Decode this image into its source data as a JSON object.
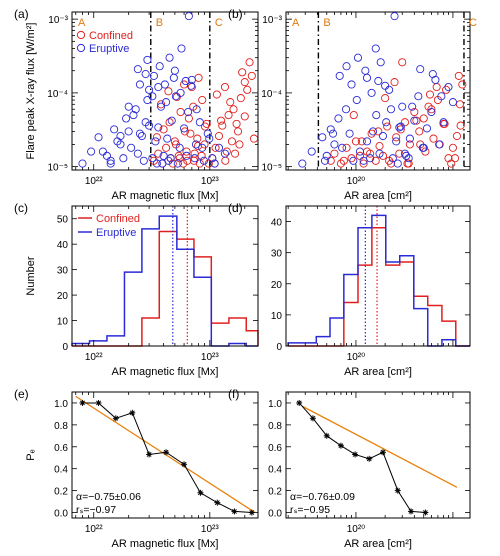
{
  "panel_labels": [
    "(a)",
    "(b)",
    "(c)",
    "(d)",
    "(e)",
    "(f)"
  ],
  "colors": {
    "confined": "#e0201e",
    "eruptive": "#2a2bd6",
    "fit": "#e8820c",
    "regions": "#e07a10",
    "prob": "#000000"
  },
  "chart_data": [
    {
      "id": "a",
      "type": "scatter",
      "xscale": "log",
      "yscale": "log",
      "xlim": [
        6.5e+21,
        2.6e+23
      ],
      "ylim": [
        9e-06,
        0.00125
      ],
      "xlabel": "AR magnetic flux [Mx]",
      "ylabel": "Flare peak X-ray flux [W/m²]",
      "xticks": [
        {
          "v": 1e+22,
          "label": "10²²"
        },
        {
          "v": 1e+23,
          "label": "10²³"
        }
      ],
      "yticks": [
        {
          "v": 1e-05,
          "label": "10⁻⁵"
        },
        {
          "v": 0.0001,
          "label": "10⁻⁴"
        },
        {
          "v": 0.001,
          "label": "10⁻³"
        }
      ],
      "region_labels": [
        "A",
        "B",
        "C"
      ],
      "vlines": [
        3.1e+22,
        1e+23
      ],
      "legend": {
        "position": "top-left",
        "entries": [
          "Confined",
          "Eruptive"
        ]
      },
      "series": [
        {
          "name": "Confined",
          "x": [
            3.3e+22,
            3.6e+22,
            3.9e+22,
            4.2e+22,
            4.6e+22,
            5e+22,
            5.4e+22,
            5.9e+22,
            6.3e+22,
            6.8e+22,
            7.3e+22,
            7.9e+22,
            8.5e+22,
            9.1e+22,
            9.8e+22,
            3.5e+22,
            4e+22,
            4.5e+22,
            5.1e+22,
            5.6e+22,
            6.1e+22,
            6.6e+22,
            7.2e+22,
            7.8e+22,
            8.6e+22,
            9.4e+22,
            1.05e+23,
            1.12e+23,
            1.2e+23,
            1.28e+23,
            1.36e+23,
            1.45e+23,
            1.55e+23,
            1.65e+23,
            1.75e+23,
            1.85e+23,
            2e+23,
            2.2e+23,
            1.1e+23,
            1.25e+23,
            1.4e+23,
            1.6e+23,
            1.8e+23,
            2.1e+23,
            4.8e+22,
            5.5e+22,
            6.4e+22,
            7.4e+22,
            8.2e+22,
            9e+22,
            1.15e+23,
            1.35e+23,
            1.7e+23,
            2.3e+23,
            3.8e+22,
            4.4e+22,
            5.2e+22,
            6e+22,
            7e+22,
            8e+22,
            2.4e+23,
            2e+23,
            1.5e+23,
            1.9e+23
          ],
          "y": [
            1.2e-05,
            1.5e-05,
            1.1e-05,
            1.8e-05,
            1.3e-05,
            2.2e-05,
            1.4e-05,
            1.1e-05,
            1.6e-05,
            2.8e-05,
            1.2e-05,
            1.9e-05,
            1.4e-05,
            3.5e-05,
            1.1e-05,
            2.5e-05,
            3.2e-05,
            4e-05,
            2e-05,
            5.5e-05,
            3e-05,
            4.5e-05,
            6.5e-05,
            2.4e-05,
            8e-05,
            3.8e-05,
            1.3e-05,
            1.8e-05,
            2.6e-05,
            3.6e-05,
            1.2e-05,
            5e-05,
            2.2e-05,
            1.5e-05,
            3e-05,
            8.5e-05,
            0.00014,
            0.00026,
            1.1e-05,
            4.2e-05,
            1.6e-05,
            6e-05,
            2e-05,
            0.00011,
            1.1e-05,
            1.3e-05,
            1.2e-05,
            1.5e-05,
            1.1e-05,
            2e-05,
            9.5e-05,
            0.00012,
            3.8e-05,
            0.00017,
            7e-05,
            0.000105,
            8.8e-05,
            0.00013,
            0.00012,
            0.00016,
            2.4e-05,
            4.8e-05,
            7.5e-05,
            0.00019
          ]
        },
        {
          "name": "Eruptive",
          "x": [
            8e+21,
            9.5e+21,
            1.1e+22,
            1.3e+22,
            1.5e+22,
            1.7e+22,
            1.9e+22,
            2.1e+22,
            2.3e+22,
            2.5e+22,
            2.7e+22,
            2.9e+22,
            1.2e+22,
            1.4e+22,
            1.6e+22,
            1.8e+22,
            2e+22,
            2.2e+22,
            2.4e+22,
            2.6e+22,
            2.8e+22,
            3e+22,
            3.2e+22,
            3.4e+22,
            3.6e+22,
            3.8e+22,
            4e+22,
            4.3e+22,
            4.7e+22,
            5.1e+22,
            5.5e+22,
            6e+22,
            6.5e+22,
            7e+22,
            7.6e+22,
            8.2e+22,
            8.9e+22,
            9.6e+22,
            3.3e+22,
            3.7e+22,
            4.1e+22,
            4.5e+22,
            5e+22,
            5.6e+22,
            6.2e+22,
            6.9e+22,
            7.7e+22,
            1.1e+23,
            1.35e+23,
            2e+22,
            2.4e+22,
            2.8e+22,
            3.2e+22,
            3.6e+22,
            4.2e+22,
            4.9e+22,
            5.7e+22,
            6.6e+22,
            1.05e+23,
            1.2e+23,
            1.4e+22,
            1.7e+22,
            3e+22,
            3.5e+22,
            4.4e+22,
            5.3e+22,
            6.3e+22,
            7.4e+22,
            8.6e+22,
            9.9e+22,
            2.5e+22,
            2.9e+22,
            3.9e+22,
            4.6e+22
          ],
          "y": [
            1.1e-05,
            1.6e-05,
            2.5e-05,
            1.4e-05,
            3.2e-05,
            2e-05,
            4.5e-05,
            1.8e-05,
            6e-05,
            2.8e-05,
            1.2e-05,
            8e-05,
            1.6e-05,
            1.2e-05,
            2.2e-05,
            1.3e-05,
            3e-05,
            5e-05,
            1.5e-05,
            2.6e-05,
            4e-05,
            0.00011,
            1.3e-05,
            2.2e-05,
            3.4e-05,
            6.5e-05,
            1.4e-05,
            2.4e-05,
            4.2e-05,
            9e-05,
            1.8e-05,
            3.3e-05,
            5.5e-05,
            0.00015,
            2e-05,
            4e-05,
            1.2e-05,
            2.8e-05,
            0.00017,
            0.00023,
            0.00013,
            0.0003,
            0.0002,
            0.0001,
            0.000145,
            0.000125,
            6e-05,
            1.1e-05,
            1.5e-05,
            6.5e-05,
            0.00021,
            0.00018,
            9e-05,
            0.00012,
            7.5e-05,
            0.00016,
            0.0004,
            0.0011,
            1.3e-05,
            1.8e-05,
            1.1e-05,
            2.6e-05,
            3.6e-05,
            1.1e-05,
            1.2e-05,
            1.1e-05,
            1.4e-05,
            1.3e-05,
            1.8e-05,
            2.4e-05,
            0.00013,
            0.00028,
            1.1e-05,
            1.3e-05
          ]
        }
      ]
    },
    {
      "id": "b",
      "type": "scatter",
      "xscale": "log",
      "yscale": "log",
      "xlim": [
        1.9e+19,
        1.5e+21
      ],
      "ylim": [
        9e-06,
        0.00125
      ],
      "xlabel": "AR area [cm²]",
      "xticks": [
        {
          "v": 1e+20,
          "label": "10²⁰"
        }
      ],
      "yticks": [
        {
          "v": 1e-05,
          "label": "10⁻⁵"
        },
        {
          "v": 0.0001,
          "label": "10⁻⁴"
        },
        {
          "v": 0.001,
          "label": "10⁻³"
        }
      ],
      "region_labels": [
        "A",
        "B",
        "C"
      ],
      "vlines": [
        4.1e+19,
        1.3e+21
      ],
      "series": [
        {
          "name": "Confined",
          "x": [
            5.5e+19,
            6e+19,
            7e+19,
            8e+19,
            9e+19,
            1e+20,
            1.1e+20,
            1.2e+20,
            1.3e+20,
            1.45e+20,
            1.6e+20,
            1.75e+20,
            1.9e+20,
            2.1e+20,
            2.3e+20,
            2.6e+20,
            2.9e+20,
            3.2e+20,
            3.6e+20,
            4e+20,
            4.5e+20,
            5e+20,
            5.6e+20,
            6.3e+20,
            7e+20,
            8e+20,
            9e+20,
            1e+21,
            1.1e+21,
            1.2e+21,
            7.5e+19,
            9.5e+19,
            1.15e+20,
            1.4e+20,
            1.7e+20,
            2e+20,
            2.5e+20,
            3e+20,
            3.5e+20,
            4.2e+20,
            5.2e+20,
            6e+20,
            7.2e+20,
            8.5e+20,
            9.6e+20,
            1.05e+21,
            2.2e+20,
            2.8e+20,
            3.4e+20,
            4.6e+20,
            5.8e+20,
            6.8e+20,
            8.2e+20,
            1.15e+21,
            1.25e+21,
            1.18e+21
          ],
          "y": [
            1.2e-05,
            1.5e-05,
            1.1e-05,
            1.8e-05,
            1.3e-05,
            2.2e-05,
            1.4e-05,
            1.1e-05,
            1.6e-05,
            2.8e-05,
            1.2e-05,
            1.9e-05,
            1.4e-05,
            3.5e-05,
            1.1e-05,
            2.5e-05,
            3.2e-05,
            4e-05,
            2e-05,
            5.5e-05,
            3e-05,
            4.5e-05,
            6.5e-05,
            2.4e-05,
            8e-05,
            3.8e-05,
            1.3e-05,
            1.8e-05,
            2.6e-05,
            3.6e-05,
            1.2e-05,
            5e-05,
            2.2e-05,
            1.5e-05,
            3e-05,
            8.5e-05,
            0.00014,
            0.00026,
            1.1e-05,
            4.2e-05,
            1.6e-05,
            6e-05,
            2e-05,
            0.00011,
            1.1e-05,
            1.3e-05,
            1.2e-05,
            1.5e-05,
            1.1e-05,
            2e-05,
            9.5e-05,
            0.00012,
            3.8e-05,
            0.00017,
            0.00013,
            7e-05
          ]
        },
        {
          "name": "Eruptive",
          "x": [
            2.8e+19,
            3.5e+19,
            4.5e+19,
            5e+19,
            5.5e+19,
            6e+19,
            6.6e+19,
            7.2e+19,
            7.9e+19,
            8.6e+19,
            9.4e+19,
            1.02e+20,
            1.1e+20,
            1.2e+20,
            1.3e+20,
            1.4e+20,
            1.5e+20,
            1.62e+20,
            1.75e+20,
            1.9e+20,
            2.05e+20,
            2.2e+20,
            2.4e+20,
            2.6e+20,
            2.8e+20,
            3e+20,
            3.3e+20,
            3.6e+20,
            4e+20,
            4.4e+20,
            4.9e+20,
            5.4e+20,
            6e+20,
            6.6e+20,
            7.3e+20,
            8e+20,
            4.8e+19,
            5.8e+19,
            6.8e+19,
            8e+19,
            9e+19,
            1.05e+20,
            1.25e+20,
            1.45e+20,
            1.7e+20,
            2e+20,
            2.3e+20,
            2.7e+20,
            3.2e+20,
            3.8e+20,
            4.6e+20,
            6.2e+20,
            7.6e+20,
            9e+20,
            1e+21,
            1.3e+20,
            1.6e+20,
            2.5e+20,
            3.5e+20,
            5e+20,
            1.8e+20,
            2.9e+20
          ],
          "y": [
            1.1e-05,
            1.6e-05,
            2.5e-05,
            1.4e-05,
            3.2e-05,
            2e-05,
            4.5e-05,
            1.8e-05,
            6e-05,
            2.8e-05,
            1.2e-05,
            8e-05,
            1.6e-05,
            1.2e-05,
            2.2e-05,
            1.3e-05,
            3e-05,
            5e-05,
            1.5e-05,
            2.6e-05,
            4e-05,
            0.00011,
            1.3e-05,
            2.2e-05,
            3.4e-05,
            6.5e-05,
            1.4e-05,
            2.4e-05,
            4.2e-05,
            9e-05,
            1.8e-05,
            3.3e-05,
            5.5e-05,
            0.00015,
            2e-05,
            4e-05,
            1.2e-05,
            2.8e-05,
            0.00017,
            0.00023,
            0.00013,
            0.0003,
            0.0002,
            0.0001,
            0.000145,
            0.000125,
            6e-05,
            1.1e-05,
            1.5e-05,
            6.5e-05,
            0.00021,
            0.00018,
            9e-05,
            0.00012,
            7.5e-05,
            0.00016,
            0.0004,
            0.0011,
            1.3e-05,
            1.8e-05,
            0.00026,
            3.5e-05
          ]
        }
      ]
    },
    {
      "id": "c",
      "type": "histogram",
      "xscale": "log",
      "xlim": [
        6.5e+21,
        2.6e+23
      ],
      "ylim": [
        0,
        55
      ],
      "xlabel": "AR magnetic flux [Mx]",
      "ylabel": "Number",
      "xticks": [
        {
          "v": 1e+22,
          "label": "10²²"
        },
        {
          "v": 1e+23,
          "label": "10²³"
        }
      ],
      "yticks": [
        0,
        10,
        20,
        30,
        40,
        50
      ],
      "legend": {
        "position": "top-left",
        "entries": [
          "Confined",
          "Eruptive"
        ]
      },
      "bin_edges": [
        6.5e+21,
        9.2e+21,
        1.3e+22,
        1.84e+22,
        2.6e+22,
        3.67e+22,
        5.2e+22,
        7.3e+22,
        1.03e+23,
        1.46e+23,
        2.06e+23,
        2.6e+23
      ],
      "series": [
        {
          "name": "Confined",
          "values": [
            0,
            0,
            0,
            0,
            11,
            45,
            42,
            35,
            9,
            11,
            6
          ],
          "median": 6.4e+22
        },
        {
          "name": "Eruptive",
          "values": [
            1,
            2,
            4,
            29,
            46,
            51,
            38,
            27,
            0,
            1,
            0
          ],
          "median": 4.8e+22
        }
      ]
    },
    {
      "id": "d",
      "type": "histogram",
      "xscale": "log",
      "xlim": [
        1.9e+19,
        1.5e+21
      ],
      "ylim": [
        0,
        45
      ],
      "xlabel": "AR area [cm²]",
      "xticks": [
        {
          "v": 1e+20,
          "label": "10²⁰"
        }
      ],
      "yticks": [
        0,
        10,
        20,
        30,
        40
      ],
      "bin_edges": [
        2e+19,
        2.8e+19,
        3.9e+19,
        5.4e+19,
        7.5e+19,
        1.05e+20,
        1.46e+20,
        2.03e+20,
        2.83e+20,
        3.95e+20,
        5.5e+20,
        7.7e+20,
        1.07e+21,
        1.5e+21
      ],
      "series": [
        {
          "name": "Confined",
          "values": [
            0,
            0,
            0,
            0,
            14,
            26,
            38,
            26,
            27,
            16,
            13,
            8,
            0
          ],
          "median": 1.65e+20
        },
        {
          "name": "Eruptive",
          "values": [
            1,
            1,
            3,
            9,
            23,
            38,
            42,
            27,
            29,
            12,
            0,
            2,
            0
          ],
          "median": 1.25e+20
        }
      ]
    },
    {
      "id": "e",
      "type": "line",
      "xscale": "log",
      "xlim": [
        6.5e+21,
        2.6e+23
      ],
      "ylim": [
        -0.05,
        1.1
      ],
      "xlabel": "AR magnetic flux [Mx]",
      "ylabel": "Pₑ",
      "xticks": [
        {
          "v": 1e+22,
          "label": "10²²"
        },
        {
          "v": 1e+23,
          "label": "10²³"
        }
      ],
      "yticks": [
        {
          "v": 0.0,
          "label": "0.0"
        },
        {
          "v": 0.2,
          "label": "0.2"
        },
        {
          "v": 0.4,
          "label": "0.4"
        },
        {
          "v": 0.6,
          "label": "0.6"
        },
        {
          "v": 0.8,
          "label": "0.8"
        },
        {
          "v": 1.0,
          "label": "1.0"
        }
      ],
      "series": [
        {
          "name": "probability",
          "x": [
            8e+21,
            1.1e+22,
            1.55e+22,
            2.15e+22,
            3e+22,
            4.2e+22,
            6e+22,
            8.3e+22,
            1.16e+23,
            1.63e+23,
            2.3e+23
          ],
          "y": [
            1.0,
            1.0,
            0.86,
            0.91,
            0.53,
            0.55,
            0.44,
            0.18,
            0.09,
            0.01,
            0.0
          ]
        },
        {
          "name": "fit",
          "x": [
            7e+21,
            2.45e+23
          ],
          "y": [
            1.06,
            0.0
          ]
        }
      ],
      "annotations": [
        "α=−0.75±0.06",
        "rₛ=−0.97"
      ]
    },
    {
      "id": "f",
      "type": "line",
      "xscale": "log",
      "xlim": [
        1.9e+19,
        1.5e+21
      ],
      "ylim": [
        -0.05,
        1.1
      ],
      "xlabel": "AR area [cm²]",
      "xticks": [
        {
          "v": 1e+20,
          "label": "10²⁰"
        }
      ],
      "yticks": [
        {
          "v": 0.0,
          "label": "0.0"
        },
        {
          "v": 0.2,
          "label": "0.2"
        },
        {
          "v": 0.4,
          "label": "0.4"
        },
        {
          "v": 0.6,
          "label": "0.6"
        },
        {
          "v": 0.8,
          "label": "0.8"
        },
        {
          "v": 1.0,
          "label": "1.0"
        }
      ],
      "series": [
        {
          "name": "probability",
          "x": [
            2.6e+19,
            3.6e+19,
            5e+19,
            7e+19,
            9.8e+19,
            1.37e+20,
            1.9e+20,
            2.7e+20,
            3.7e+20,
            5.2e+20
          ],
          "y": [
            1.0,
            0.86,
            0.7,
            0.61,
            0.53,
            0.49,
            0.55,
            0.2,
            0.01,
            0.0
          ]
        },
        {
          "name": "fit",
          "x": [
            2.8e+19,
            1.1e+21
          ],
          "y": [
            0.97,
            0.23
          ]
        }
      ],
      "annotations": [
        "α=−0.76±0.09",
        "rₛ=−0.95"
      ]
    }
  ]
}
